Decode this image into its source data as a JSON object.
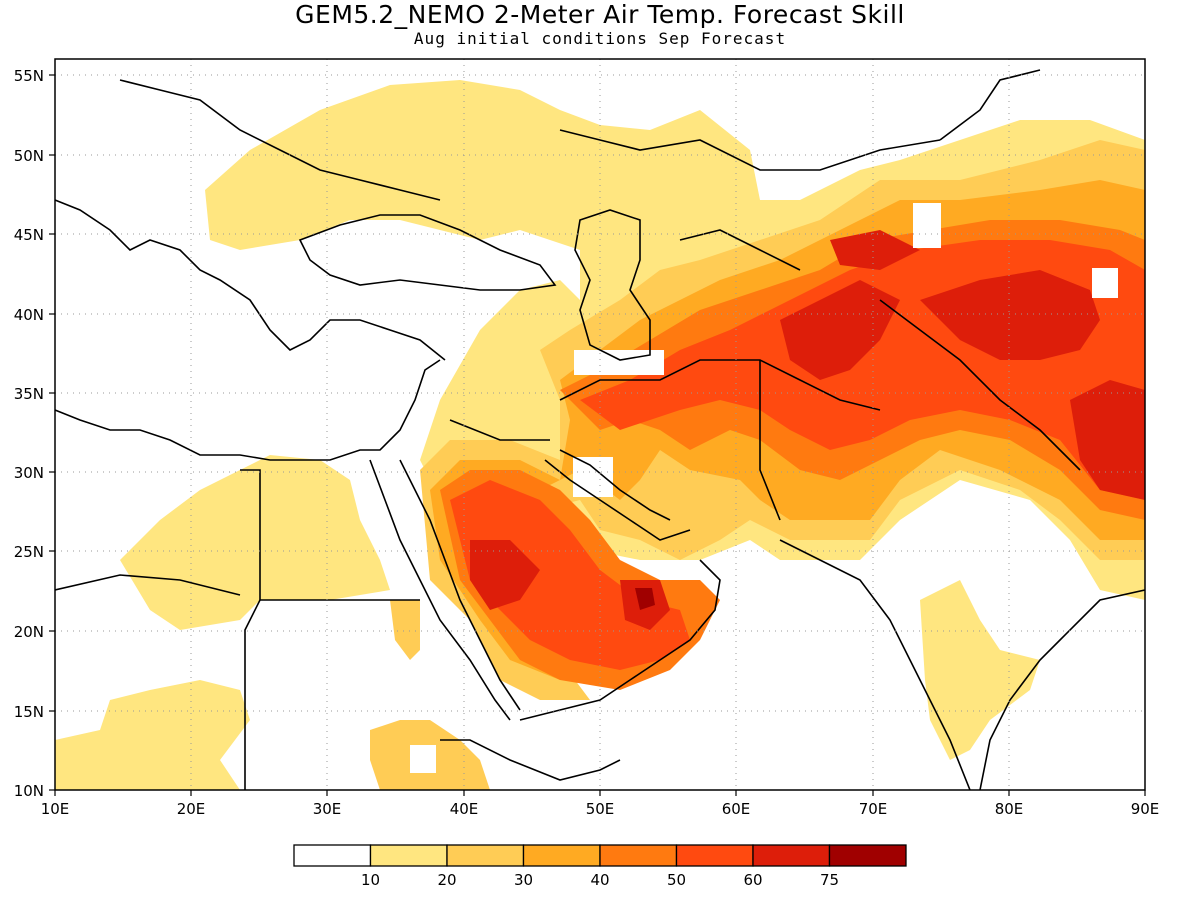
{
  "title": "GEM5.2_NEMO 2-Meter Air Temp. Forecast Skill",
  "subtitle": "Aug initial conditions  Sep Forecast",
  "colors": {
    "c0": "#ffffff",
    "c1": "#ffe680",
    "c2": "#ffcc55",
    "c3": "#ffaa22",
    "c4": "#ff7a10",
    "c5": "#ff4a10",
    "c6": "#dd1e0a",
    "c7": "#a00000"
  },
  "chart_data": {
    "type": "heatmap",
    "variable": "2-Meter Air Temp. Forecast Skill",
    "x_range": [
      10,
      90
    ],
    "y_range": [
      10,
      56
    ],
    "x_ticks": [
      "10E",
      "20E",
      "30E",
      "40E",
      "50E",
      "60E",
      "70E",
      "80E",
      "90E"
    ],
    "y_ticks": [
      "10N",
      "15N",
      "20N",
      "25N",
      "30N",
      "35N",
      "40N",
      "45N",
      "50N",
      "55N"
    ],
    "colorbar": {
      "thresholds": [
        "10",
        "20",
        "30",
        "40",
        "50",
        "60",
        "75"
      ],
      "colors": [
        "#ffffff",
        "#ffe680",
        "#ffcc55",
        "#ffaa22",
        "#ff7a10",
        "#ff4a10",
        "#dd1e0a",
        "#a00000"
      ]
    },
    "grid": true
  }
}
